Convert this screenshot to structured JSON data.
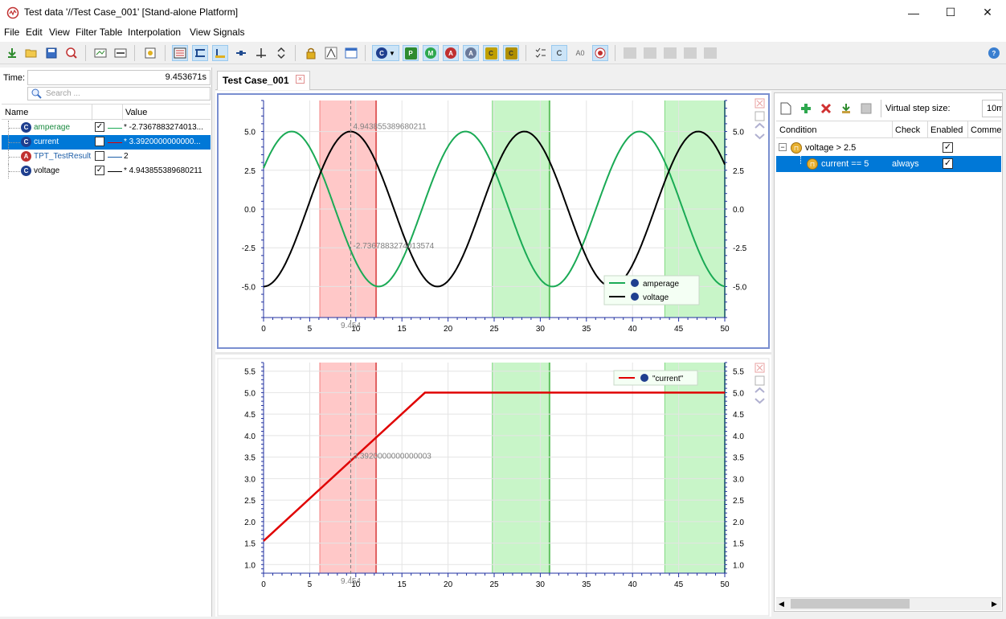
{
  "window": {
    "title": "Test data '//Test Case_001' [Stand-alone Platform]",
    "minimize": "—",
    "maximize": "☐",
    "close": "✕"
  },
  "menu": [
    "File",
    "Edit",
    "View",
    "Filter Table",
    "Interpolation",
    "View Signals"
  ],
  "toolbar": {
    "icons": [
      "import-icon",
      "open-folder-icon",
      "save-icon",
      "analyze-icon",
      "add-chart-icon",
      "remove-chart-icon",
      "fit-icon",
      "layout-1-icon",
      "layout-2-icon",
      "layout-3-icon",
      "cursor-icon",
      "marker-icon",
      "expand-icon",
      "lock-icon",
      "curve-icon",
      "window-icon",
      "channel-c-icon",
      "channel-p-icon",
      "channel-m-icon",
      "channel-a-icon",
      "channel-a2-icon",
      "channel-c2-icon",
      "channel-cs-icon",
      "checklist-icon",
      "c-toggle-icon",
      "ao-icon",
      "record-icon",
      "disabled-1-icon",
      "disabled-2-icon",
      "disabled-3-icon",
      "disabled-4-icon",
      "help-icon"
    ],
    "letters": {
      "c": "C",
      "p": "P",
      "m": "M",
      "a": "A",
      "a2": "A",
      "c2": "C",
      "cs": "C",
      "ao": "A0"
    }
  },
  "left_panel": {
    "time_label": "Time:",
    "time_value": "9.453671s",
    "search_placeholder": "Search ...",
    "columns": {
      "name": "Name",
      "value": "Value"
    },
    "signals": [
      {
        "name": "amperage",
        "icon": "C",
        "checked": true,
        "checked_glyph": "✓",
        "line_color": "#1aaa55",
        "value": "* -2.7367883274013...",
        "name_color": "#1a8a40"
      },
      {
        "name": "current",
        "icon": "C",
        "checked": false,
        "checked_glyph": "",
        "line_color": "#e00000",
        "value": "* 3.3920000000000...",
        "name_color": "#ffffff"
      },
      {
        "name": "TPT_TestResult",
        "icon": "A",
        "checked": false,
        "checked_glyph": "",
        "line_color": "#1f5fa8",
        "value": "2",
        "name_color": "#1f5fa8"
      },
      {
        "name": "voltage",
        "icon": "C",
        "checked": true,
        "checked_glyph": "✓",
        "line_color": "#000000",
        "value": "* 4.943855389680211",
        "name_color": "#000000"
      }
    ]
  },
  "tab": {
    "label": "Test Case_001",
    "close": "×"
  },
  "chart_data": [
    {
      "type": "line",
      "xlim": [
        0,
        50
      ],
      "ylim": [
        -7,
        7
      ],
      "xticks": [
        0,
        5,
        10,
        15,
        20,
        25,
        30,
        35,
        40,
        45,
        50
      ],
      "yticks": [
        -5.0,
        -2.5,
        0.0,
        2.5,
        5.0
      ],
      "ytick_labels": [
        "-5.0",
        "-2.5",
        "0.0",
        "2.5",
        "5.0"
      ],
      "series": [
        {
          "name": "amperage",
          "color": "#1aaa55",
          "function": "5*sin(x/3 + 0.556)",
          "x_range": [
            0,
            50
          ]
        },
        {
          "name": "voltage",
          "color": "#000000",
          "function": "-5*cos(x/3)",
          "x_range": [
            0,
            50
          ]
        }
      ],
      "cursor": {
        "x": 9.454,
        "label": "9.454"
      },
      "annotations": [
        {
          "text": "4.943855389680211",
          "x": 9.454,
          "y": 4.94
        },
        {
          "text": "-2.7367883274013574",
          "x": 9.454,
          "y": -2.74
        }
      ],
      "bands": [
        {
          "from": 6.1,
          "to": 12.2,
          "color": "red"
        },
        {
          "from": 24.8,
          "to": 31.0,
          "color": "green"
        },
        {
          "from": 43.5,
          "to": 50.0,
          "color": "green"
        }
      ],
      "legend": {
        "placement": "bottom-right",
        "entries": [
          "amperage",
          "voltage"
        ]
      },
      "grid": true
    },
    {
      "type": "line",
      "xlim": [
        0,
        50
      ],
      "ylim": [
        0.8,
        5.7
      ],
      "xticks": [
        0,
        5,
        10,
        15,
        20,
        25,
        30,
        35,
        40,
        45,
        50
      ],
      "yticks": [
        1.0,
        1.5,
        2.0,
        2.5,
        3.0,
        3.5,
        4.0,
        4.5,
        5.0,
        5.5
      ],
      "ytick_labels": [
        "1.0",
        "1.5",
        "2.0",
        "2.5",
        "3.0",
        "3.5",
        "4.0",
        "4.5",
        "5.0",
        "5.5"
      ],
      "series": [
        {
          "name": "\"current\"",
          "color": "#e00000",
          "x": [
            0,
            17.5,
            50
          ],
          "y": [
            1.55,
            5.0,
            5.0
          ]
        }
      ],
      "cursor": {
        "x": 9.454,
        "label": "9.454"
      },
      "annotations": [
        {
          "text": "3.3920000000000003",
          "x": 9.454,
          "y": 3.39
        }
      ],
      "bands": [
        {
          "from": 6.1,
          "to": 12.2,
          "color": "red"
        },
        {
          "from": 24.8,
          "to": 31.0,
          "color": "green"
        },
        {
          "from": 43.5,
          "to": 50.0,
          "color": "green"
        }
      ],
      "legend": {
        "placement": "top-right",
        "entries": [
          "\"current\""
        ]
      },
      "grid": true
    }
  ],
  "right_panel": {
    "virtual_step_label": "Virtual step size:",
    "virtual_step_value": "10m",
    "columns": {
      "condition": "Condition",
      "check": "Check",
      "enabled": "Enabled",
      "comment": "Comme"
    },
    "conditions": [
      {
        "label": "voltage > 2.5",
        "check": "",
        "enabled": "✓",
        "expander": "−"
      },
      {
        "label": "current == 5",
        "check": "always",
        "enabled": "✓"
      }
    ]
  }
}
